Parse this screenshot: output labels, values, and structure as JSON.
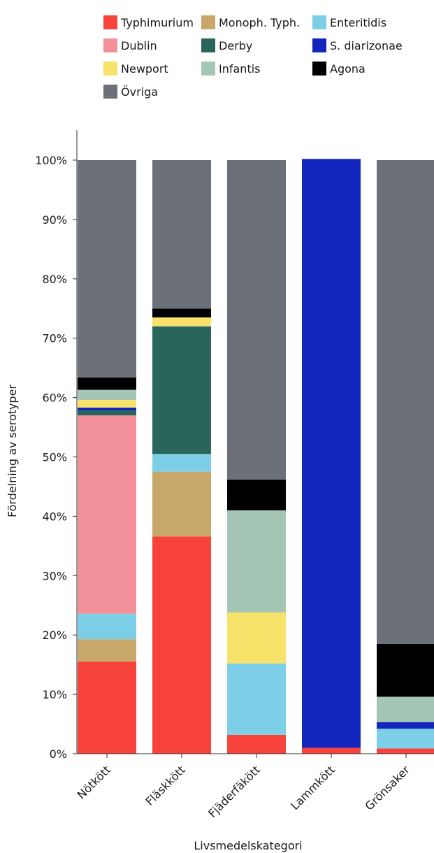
{
  "chart_data": {
    "type": "bar",
    "stacked": true,
    "percent_scale": true,
    "xlabel": "Livsmedelskategori",
    "ylabel": "Fördelning av serotyper",
    "ylim": [
      0,
      100
    ],
    "yticks": [
      "0%",
      "10%",
      "20%",
      "30%",
      "40%",
      "50%",
      "60%",
      "70%",
      "80%",
      "90%",
      "100%"
    ],
    "categories": [
      "Nötkött",
      "Fläskkött",
      "Fjäderfäkött",
      "Lammkött",
      "Grönsaker"
    ],
    "legend_position": "top",
    "series": [
      {
        "name": "Typhimurium",
        "color": "#f7433b",
        "values": [
          15.5,
          36.6,
          3.2,
          1.0,
          0.9
        ]
      },
      {
        "name": "Monoph. Typh.",
        "color": "#c8a86a",
        "values": [
          3.8,
          10.9,
          0.0,
          0.0,
          0.0
        ]
      },
      {
        "name": "Enteritidis",
        "color": "#7dcfe8",
        "values": [
          4.3,
          3.0,
          12.0,
          0.0,
          3.3
        ]
      },
      {
        "name": "Dublin",
        "color": "#f29199",
        "values": [
          33.4,
          0.0,
          0.0,
          0.0,
          0.0
        ]
      },
      {
        "name": "Derby",
        "color": "#2a655b",
        "values": [
          0.8,
          21.5,
          0.0,
          0.0,
          0.0
        ]
      },
      {
        "name": "S. diarizonae",
        "color": "#1225bd",
        "values": [
          0.5,
          0.0,
          0.0,
          99.2,
          1.1
        ]
      },
      {
        "name": "Newport",
        "color": "#f7e36a",
        "values": [
          1.3,
          1.5,
          8.6,
          0.0,
          0.0
        ]
      },
      {
        "name": "Infantis",
        "color": "#a6c6b5",
        "values": [
          1.7,
          0.0,
          17.2,
          0.0,
          4.3
        ]
      },
      {
        "name": "Agona",
        "color": "#000000",
        "values": [
          2.1,
          1.5,
          5.2,
          0.0,
          8.9
        ]
      },
      {
        "name": "Övriga",
        "color": "#6b7079",
        "values": [
          36.6,
          25.0,
          53.8,
          0.0,
          81.5
        ]
      }
    ],
    "legend_order": [
      "Typhimurium",
      "Monoph. Typh.",
      "Enteritidis",
      "Dublin",
      "Derby",
      "S. diarizonae",
      "Newport",
      "Infantis",
      "Agona",
      "Övriga"
    ]
  }
}
